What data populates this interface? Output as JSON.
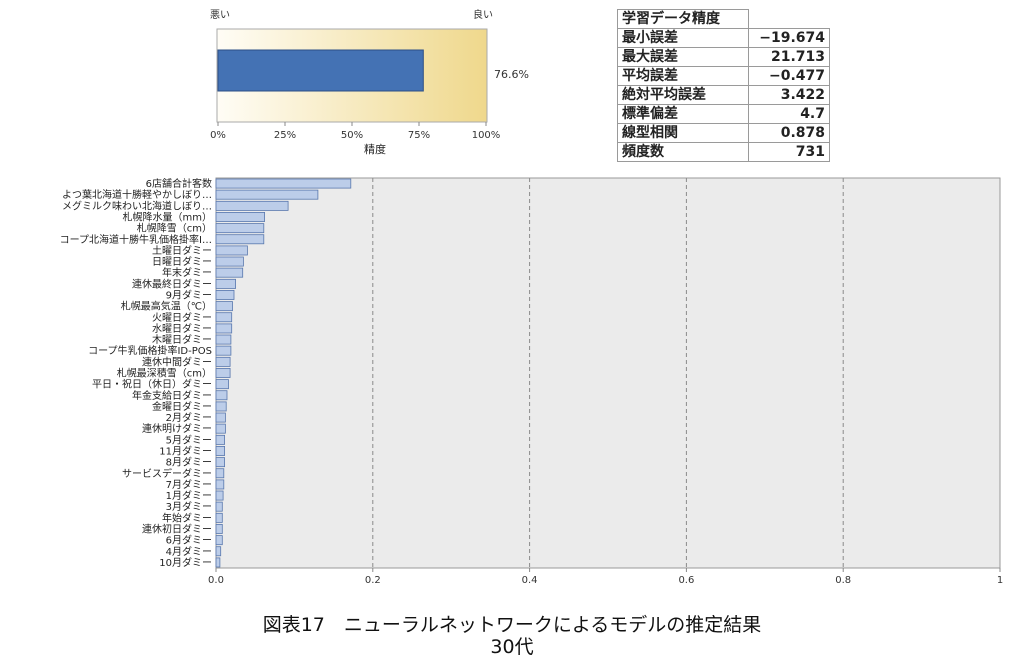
{
  "gauge": {
    "left_label": "悪い",
    "right_label": "良い",
    "value_percent": 76.6,
    "value_label": "76.6%",
    "ticks": [
      "0%",
      "25%",
      "50%",
      "75%",
      "100%"
    ],
    "xlabel": "精度"
  },
  "stats": {
    "title": "学習データ精度",
    "rows": [
      {
        "label": "最小誤差",
        "value": "−19.674"
      },
      {
        "label": "最大誤差",
        "value": "21.713"
      },
      {
        "label": "平均誤差",
        "value": "−0.477"
      },
      {
        "label": "絶対平均誤差",
        "value": "3.422"
      },
      {
        "label": "標準偏差",
        "value": "4.7"
      },
      {
        "label": "線型相関",
        "value": "0.878"
      },
      {
        "label": "頻度数",
        "value": "731"
      }
    ]
  },
  "chart_data": {
    "type": "bar",
    "orientation": "horizontal",
    "categories": [
      "6店舗合計客数",
      "よつ葉北海道十勝軽やかしぼり…",
      "メグミルク味わい北海道しぼり…",
      "札幌降水量（mm）",
      "札幌降雪（cm）",
      "コープ北海道十勝牛乳価格掛率I…",
      "土曜日ダミー",
      "日曜日ダミー",
      "年末ダミー",
      "連休最終日ダミー",
      "9月ダミー",
      "札幌最高気温（℃）",
      "火曜日ダミー",
      "水曜日ダミー",
      "木曜日ダミー",
      "コープ牛乳価格掛率ID-POS",
      "連休中間ダミー",
      "札幌最深積雪（cm）",
      "平日・祝日（休日）ダミー",
      "年金支給日ダミー",
      "金曜日ダミー",
      "2月ダミー",
      "連休明けダミー",
      "5月ダミー",
      "11月ダミー",
      "8月ダミー",
      "サービスデーダミー",
      "7月ダミー",
      "1月ダミー",
      "3月ダミー",
      "年始ダミー",
      "連休初日ダミー",
      "6月ダミー",
      "4月ダミー",
      "10月ダミー"
    ],
    "values": [
      0.172,
      0.13,
      0.092,
      0.062,
      0.061,
      0.061,
      0.04,
      0.035,
      0.034,
      0.025,
      0.023,
      0.021,
      0.02,
      0.02,
      0.019,
      0.019,
      0.018,
      0.018,
      0.016,
      0.014,
      0.013,
      0.012,
      0.012,
      0.011,
      0.011,
      0.011,
      0.01,
      0.01,
      0.009,
      0.008,
      0.008,
      0.008,
      0.008,
      0.006,
      0.005
    ],
    "xticks": [
      "0.0",
      "0.2",
      "0.4",
      "0.6",
      "0.8",
      "1"
    ],
    "xlim": [
      0,
      1
    ],
    "grid": "vertical dashed",
    "bar_color": "#bccde9",
    "plot_background": "#ebebeb"
  },
  "caption": {
    "line1": "図表17　ニューラルネットワークによるモデルの推定結果",
    "line2": "30代"
  }
}
